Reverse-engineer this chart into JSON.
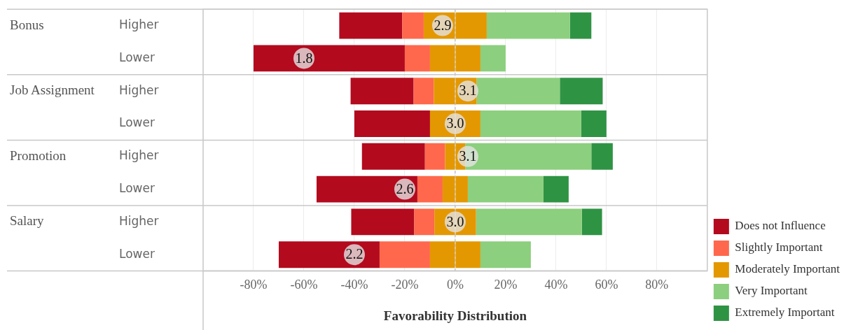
{
  "chart_data": {
    "type": "bar",
    "orientation": "horizontal",
    "stacked": true,
    "xlabel": "Favorability Distribution",
    "categories": [
      "Higher",
      "Lower",
      "Higher",
      "Lower",
      "Higher",
      "Lower",
      "Higher",
      "Lower"
    ],
    "series": [
      {
        "name": "Moderately Important",
        "color": "#e39802",
        "values": [
          -12.5,
          -10,
          -8.5,
          -10,
          -4,
          -5,
          -8.25,
          -10
        ]
      },
      {
        "name": "Slightly Important",
        "color": "#ff684c",
        "values": [
          -8.5,
          -10,
          -8,
          null,
          -8,
          -10,
          -8,
          -20
        ]
      },
      {
        "name": "Does not Influence",
        "color": "#b30a1e",
        "values": [
          -25,
          -60,
          -25,
          -30,
          -25,
          -40,
          -25,
          -40
        ]
      },
      {
        "color": "#e39802",
        "values": [
          12.5,
          10,
          8.5,
          10,
          4,
          5,
          8.25,
          10
        ]
      },
      {
        "name": "Very Important",
        "color": "#8ccf7e",
        "values": [
          33,
          10,
          33,
          40,
          50,
          30,
          42,
          20
        ]
      },
      {
        "name": "Extremely Important",
        "color": "#2f9344",
        "values": [
          8.5,
          null,
          17,
          10,
          8.5,
          10,
          8,
          null
        ]
      }
    ],
    "xlim": [
      -100,
      100
    ],
    "xticks": [
      {
        "value": -80,
        "label": "-80%"
      },
      {
        "value": -60,
        "label": "-60%"
      },
      {
        "value": -40,
        "label": "-40%"
      },
      {
        "value": -20,
        "label": "-20%"
      },
      {
        "value": 0,
        "label": "0%"
      },
      {
        "value": 20,
        "label": "20%"
      },
      {
        "value": 40,
        "label": "40%"
      },
      {
        "value": 60,
        "label": "60%"
      },
      {
        "value": 80,
        "label": "80%"
      }
    ],
    "grid": "x",
    "ref_lines": [
      {
        "axis": "x",
        "value": 0,
        "line_style": "dashed",
        "color": "#aaaaaa"
      }
    ],
    "legend": "bottom right",
    "annotations": [
      "Bonus",
      "Job Assignment",
      "Promotion",
      "Salary",
      "2.9",
      "1.8",
      "3.1",
      "3.0",
      "3.1",
      "2.6",
      "3.0",
      "2.2"
    ]
  }
}
